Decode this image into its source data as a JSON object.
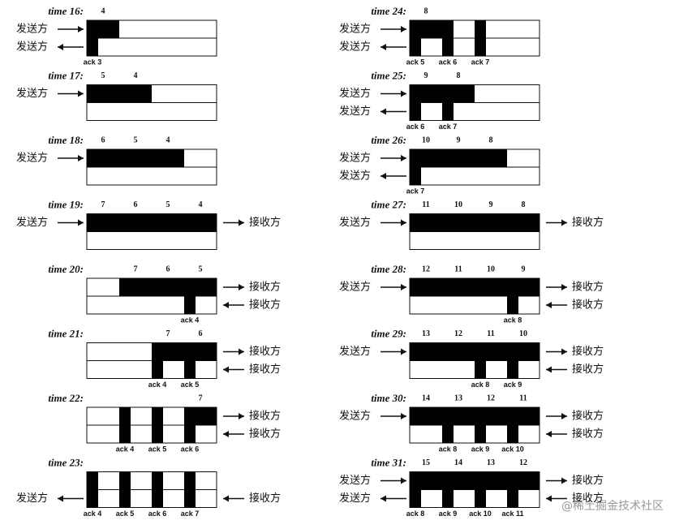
{
  "panels": [
    {
      "time": "time 16:",
      "packets": [
        4
      ],
      "acks": [
        "ack 3"
      ],
      "sender_top": "发送方",
      "sender_bottom": "发送方"
    },
    {
      "time": "time 17:",
      "packets": [
        5,
        4
      ],
      "acks": [],
      "sender_top": "发送方"
    },
    {
      "time": "time 18:",
      "packets": [
        6,
        5,
        4
      ],
      "acks": [],
      "sender_top": "发送方"
    },
    {
      "time": "time 19:",
      "packets": [
        7,
        6,
        5,
        4
      ],
      "acks": [],
      "sender_top": "发送方",
      "receiver_top": "接收方"
    },
    {
      "time": "time 20:",
      "packets": [
        7,
        6,
        5
      ],
      "acks": [
        "ack 4"
      ],
      "receiver_top": "接收方",
      "receiver_bottom": "接收方"
    },
    {
      "time": "time 21:",
      "packets": [
        7,
        6
      ],
      "acks": [
        "ack 4",
        "ack 5"
      ],
      "receiver_top": "接收方",
      "receiver_bottom": "接收方"
    },
    {
      "time": "time 22:",
      "packets": [
        7
      ],
      "acks": [
        "ack 4",
        "ack 5",
        "ack 6"
      ],
      "receiver_top": "接收方",
      "receiver_bottom": "接收方"
    },
    {
      "time": "time 23:",
      "packets": [],
      "acks": [
        "ack 4",
        "ack 5",
        "ack 6",
        "ack 7"
      ],
      "sender_bottom": "发送方",
      "receiver_bottom": "接收方"
    },
    {
      "time": "time 24:",
      "packets": [
        8
      ],
      "acks": [
        "ack 5",
        "ack 6",
        "ack 7"
      ],
      "sender_top": "发送方",
      "sender_bottom": "发送方"
    },
    {
      "time": "time 25:",
      "packets": [
        9,
        8
      ],
      "acks": [
        "ack 6",
        "ack 7"
      ],
      "sender_top": "发送方",
      "sender_bottom": "发送方"
    },
    {
      "time": "time 26:",
      "packets": [
        10,
        9,
        8
      ],
      "acks": [
        "ack 7"
      ],
      "sender_top": "发送方",
      "sender_bottom": "发送方"
    },
    {
      "time": "time 27:",
      "packets": [
        11,
        10,
        9,
        8
      ],
      "acks": [],
      "sender_top": "发送方",
      "receiver_top": "接收方"
    },
    {
      "time": "time 28:",
      "packets": [
        12,
        11,
        10,
        9
      ],
      "acks": [
        "ack 8"
      ],
      "sender_top": "发送方",
      "receiver_top": "接收方",
      "receiver_bottom": "接收方"
    },
    {
      "time": "time 29:",
      "packets": [
        13,
        12,
        11,
        10
      ],
      "acks": [
        "ack 8",
        "ack 9"
      ],
      "sender_top": "发送方",
      "receiver_top": "接收方",
      "receiver_bottom": "接收方"
    },
    {
      "time": "time 30:",
      "packets": [
        14,
        13,
        12,
        11
      ],
      "acks": [
        "ack 8",
        "ack 9",
        "ack 10"
      ],
      "sender_top": "发送方",
      "receiver_top": "接收方",
      "receiver_bottom": "接收方"
    },
    {
      "time": "time 31:",
      "packets": [
        15,
        14,
        13,
        12
      ],
      "acks": [
        "ack 8",
        "ack 9",
        "ack 10",
        "ack 11"
      ],
      "sender_top": "发送方",
      "sender_bottom": "发送方",
      "receiver_top": "接收方",
      "receiver_bottom": "接收方"
    }
  ],
  "watermark": "@稀土掘金技术社区"
}
